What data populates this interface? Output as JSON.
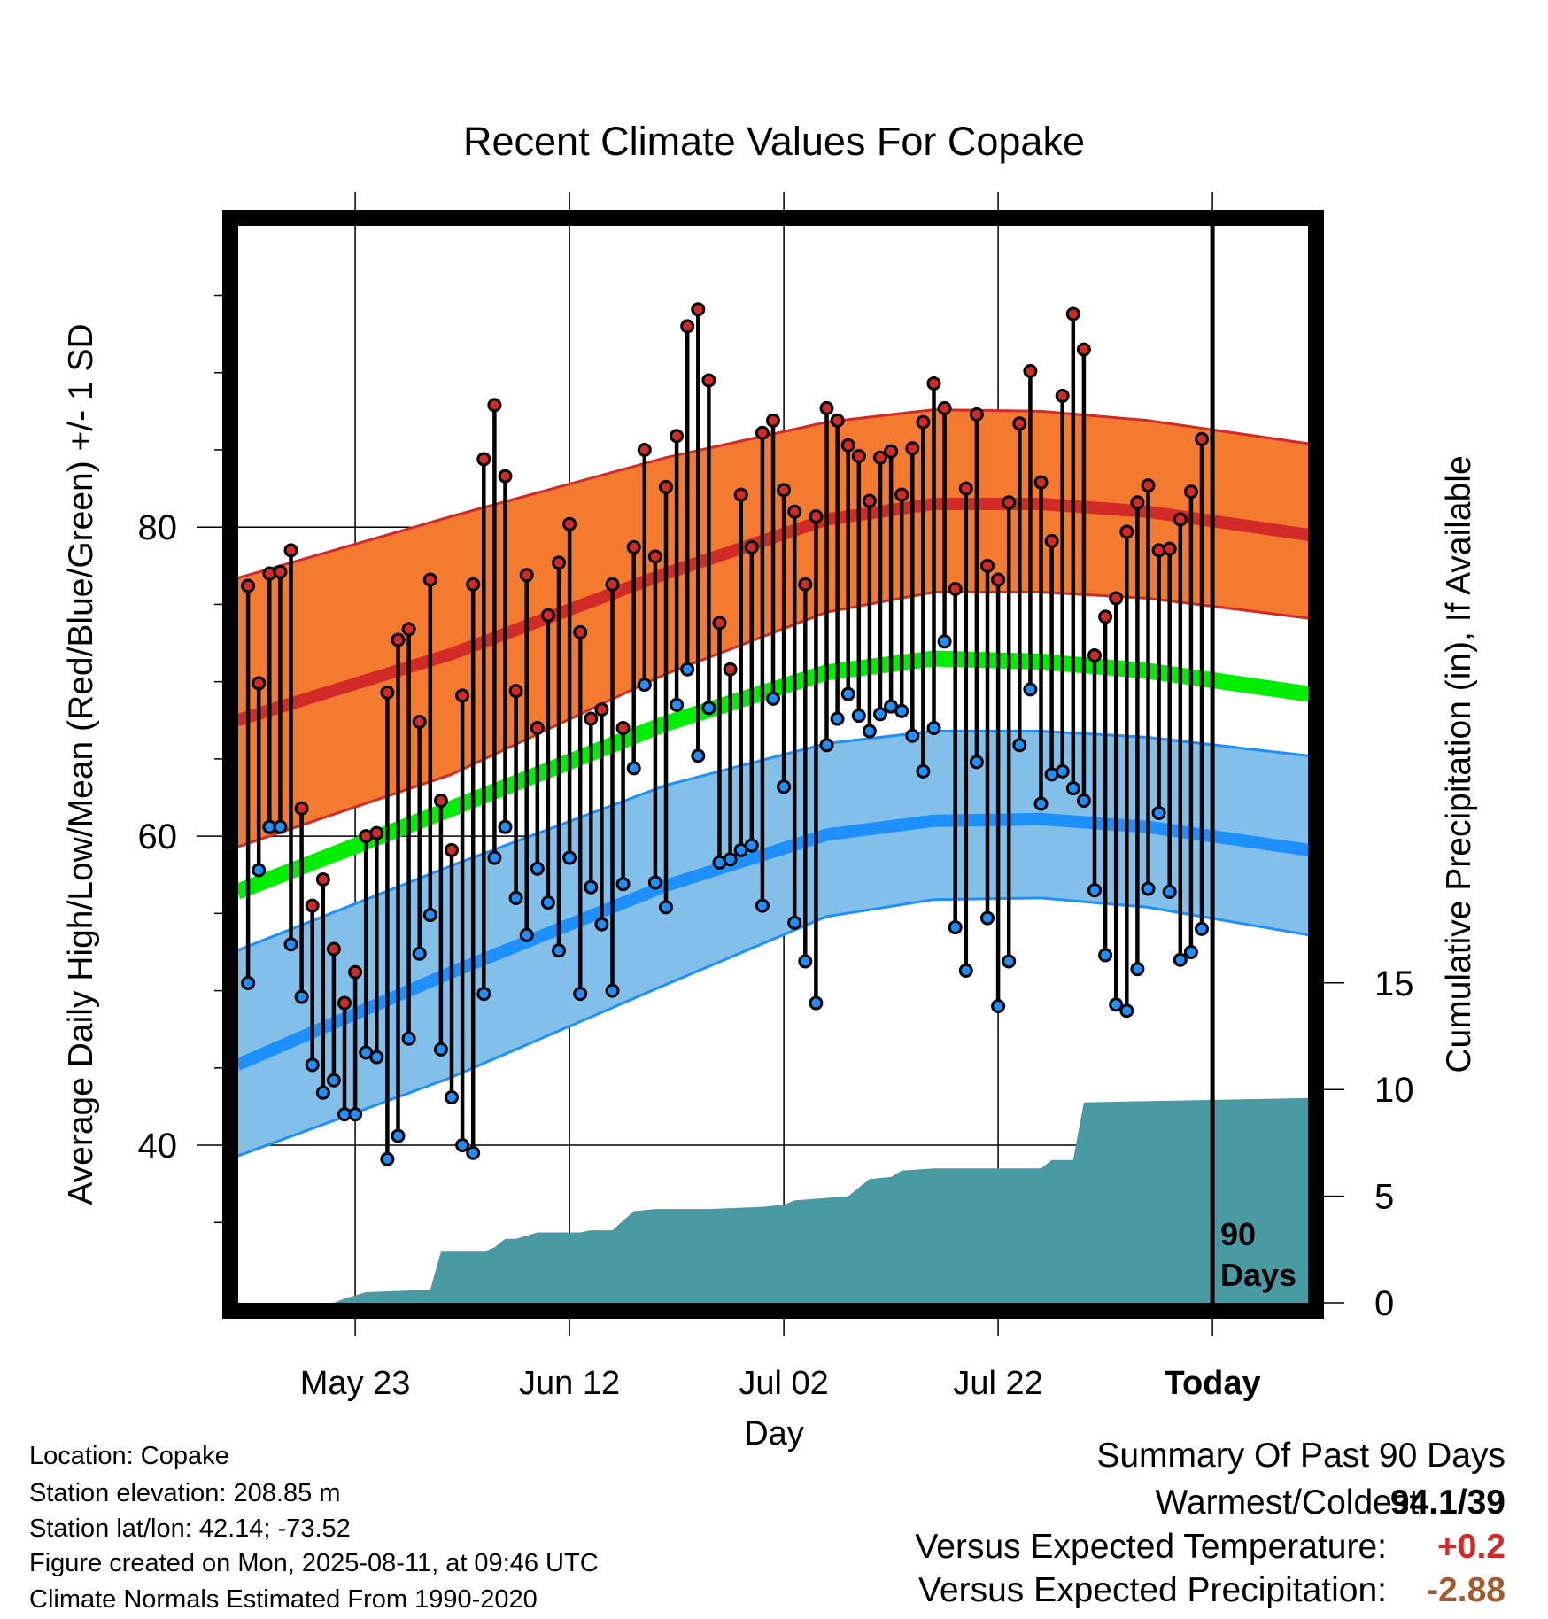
{
  "chart_data": {
    "type": "line",
    "title": "Recent Climate Values For Copake",
    "xlabel": "Day",
    "ylabel": "Average Daily High/Low/Mean (Red/Blue/Green) +/- 1 SD",
    "y2label": "Cumulative Precipitation (in), If Available",
    "x_ticks": [
      "May 23",
      "Jun 12",
      "Jul 02",
      "Jul 22",
      "Today"
    ],
    "y_ticks": [
      "40",
      "60",
      "80"
    ],
    "y2_ticks": [
      "0",
      "5",
      "10",
      "15"
    ],
    "ylim": [
      29.8,
      99.5
    ],
    "y2lim": [
      0,
      50.5
    ],
    "today_label": "90 Days",
    "today_date": "2025-08-11",
    "start_date": "2025-05-12",
    "end_date": "2025-08-20",
    "grid": true,
    "normal_high": [
      {
        "date": "2025-05-12",
        "v": 67.5
      },
      {
        "date": "2025-06-01",
        "v": 71.8
      },
      {
        "date": "2025-06-21",
        "v": 77.0
      },
      {
        "date": "2025-07-06",
        "v": 80.5
      },
      {
        "date": "2025-07-16",
        "v": 81.5
      },
      {
        "date": "2025-07-26",
        "v": 81.5
      },
      {
        "date": "2025-08-05",
        "v": 81.0
      },
      {
        "date": "2025-08-20",
        "v": 79.5
      }
    ],
    "normal_high_sd_upper": [
      {
        "date": "2025-05-12",
        "v": 76.7
      },
      {
        "date": "2025-06-01",
        "v": 80.7
      },
      {
        "date": "2025-06-21",
        "v": 84.5
      },
      {
        "date": "2025-07-06",
        "v": 86.8
      },
      {
        "date": "2025-07-16",
        "v": 87.6
      },
      {
        "date": "2025-07-26",
        "v": 87.5
      },
      {
        "date": "2025-08-05",
        "v": 86.9
      },
      {
        "date": "2025-08-20",
        "v": 85.4
      }
    ],
    "normal_high_sd_lower": [
      {
        "date": "2025-05-12",
        "v": 59.3
      },
      {
        "date": "2025-06-01",
        "v": 64.0
      },
      {
        "date": "2025-06-21",
        "v": 70.5
      },
      {
        "date": "2025-07-06",
        "v": 74.5
      },
      {
        "date": "2025-07-16",
        "v": 75.8
      },
      {
        "date": "2025-07-26",
        "v": 75.8
      },
      {
        "date": "2025-08-05",
        "v": 75.4
      },
      {
        "date": "2025-08-20",
        "v": 74.1
      }
    ],
    "normal_mean": [
      {
        "date": "2025-05-12",
        "v": 56.4
      },
      {
        "date": "2025-06-01",
        "v": 61.8
      },
      {
        "date": "2025-06-21",
        "v": 67.3
      },
      {
        "date": "2025-07-06",
        "v": 70.6
      },
      {
        "date": "2025-07-16",
        "v": 71.5
      },
      {
        "date": "2025-07-26",
        "v": 71.3
      },
      {
        "date": "2025-08-05",
        "v": 70.7
      },
      {
        "date": "2025-08-20",
        "v": 69.2
      }
    ],
    "normal_low": [
      {
        "date": "2025-05-12",
        "v": 45.2
      },
      {
        "date": "2025-06-01",
        "v": 51.2
      },
      {
        "date": "2025-06-21",
        "v": 56.8
      },
      {
        "date": "2025-07-06",
        "v": 60.1
      },
      {
        "date": "2025-07-16",
        "v": 61.0
      },
      {
        "date": "2025-07-26",
        "v": 61.1
      },
      {
        "date": "2025-08-05",
        "v": 60.6
      },
      {
        "date": "2025-08-20",
        "v": 59.1
      }
    ],
    "normal_low_sd_upper": [
      {
        "date": "2025-05-12",
        "v": 52.6
      },
      {
        "date": "2025-06-01",
        "v": 58.1
      },
      {
        "date": "2025-06-21",
        "v": 63.3
      },
      {
        "date": "2025-07-06",
        "v": 66.0
      },
      {
        "date": "2025-07-16",
        "v": 66.8
      },
      {
        "date": "2025-07-26",
        "v": 66.8
      },
      {
        "date": "2025-08-05",
        "v": 66.4
      },
      {
        "date": "2025-08-20",
        "v": 65.2
      }
    ],
    "normal_low_sd_lower": [
      {
        "date": "2025-05-12",
        "v": 39.3
      },
      {
        "date": "2025-06-01",
        "v": 44.4
      },
      {
        "date": "2025-06-21",
        "v": 50.4
      },
      {
        "date": "2025-07-06",
        "v": 54.8
      },
      {
        "date": "2025-07-16",
        "v": 55.9
      },
      {
        "date": "2025-07-26",
        "v": 56.0
      },
      {
        "date": "2025-08-05",
        "v": 55.4
      },
      {
        "date": "2025-08-20",
        "v": 53.6
      }
    ],
    "daily": [
      {
        "date": "2025-05-13",
        "high": 76.2,
        "low": 50.5
      },
      {
        "date": "2025-05-14",
        "high": 69.9,
        "low": 57.8
      },
      {
        "date": "2025-05-15",
        "high": 77.0,
        "low": 60.6
      },
      {
        "date": "2025-05-16",
        "high": 77.1,
        "low": 60.6
      },
      {
        "date": "2025-05-17",
        "high": 78.5,
        "low": 53.0
      },
      {
        "date": "2025-05-18",
        "high": 61.8,
        "low": 49.6
      },
      {
        "date": "2025-05-19",
        "high": 55.5,
        "low": 45.2
      },
      {
        "date": "2025-05-20",
        "high": 57.2,
        "low": 43.4
      },
      {
        "date": "2025-05-21",
        "high": 52.7,
        "low": 44.2
      },
      {
        "date": "2025-05-22",
        "high": 49.2,
        "low": 42.0
      },
      {
        "date": "2025-05-23",
        "high": 51.2,
        "low": 42.0
      },
      {
        "date": "2025-05-24",
        "high": 60.0,
        "low": 46.0
      },
      {
        "date": "2025-05-25",
        "high": 60.2,
        "low": 45.7
      },
      {
        "date": "2025-05-26",
        "high": 69.3,
        "low": 39.1
      },
      {
        "date": "2025-05-27",
        "high": 72.7,
        "low": 40.6
      },
      {
        "date": "2025-05-28",
        "high": 73.4,
        "low": 46.9
      },
      {
        "date": "2025-05-29",
        "high": 67.4,
        "low": 52.4
      },
      {
        "date": "2025-05-30",
        "high": 76.6,
        "low": 54.9
      },
      {
        "date": "2025-05-31",
        "high": 62.3,
        "low": 46.2
      },
      {
        "date": "2025-06-01",
        "high": 59.1,
        "low": 43.1
      },
      {
        "date": "2025-06-02",
        "high": 69.1,
        "low": 40.0
      },
      {
        "date": "2025-06-03",
        "high": 76.3,
        "low": 39.5
      },
      {
        "date": "2025-06-04",
        "high": 84.4,
        "low": 49.8
      },
      {
        "date": "2025-06-05",
        "high": 87.9,
        "low": 58.6
      },
      {
        "date": "2025-06-06",
        "high": 83.3,
        "low": 60.6
      },
      {
        "date": "2025-06-07",
        "high": 69.4,
        "low": 56.0
      },
      {
        "date": "2025-06-08",
        "high": 76.9,
        "low": 53.6
      },
      {
        "date": "2025-06-09",
        "high": 67.0,
        "low": 57.9
      },
      {
        "date": "2025-06-10",
        "high": 74.3,
        "low": 55.7
      },
      {
        "date": "2025-06-11",
        "high": 77.7,
        "low": 52.6
      },
      {
        "date": "2025-06-12",
        "high": 80.2,
        "low": 58.6
      },
      {
        "date": "2025-06-13",
        "high": 73.2,
        "low": 49.8
      },
      {
        "date": "2025-06-14",
        "high": 67.6,
        "low": 56.7
      },
      {
        "date": "2025-06-15",
        "high": 68.2,
        "low": 54.3
      },
      {
        "date": "2025-06-16",
        "high": 76.3,
        "low": 50.0
      },
      {
        "date": "2025-06-17",
        "high": 67.0,
        "low": 56.9
      },
      {
        "date": "2025-06-18",
        "high": 78.7,
        "low": 64.4
      },
      {
        "date": "2025-06-19",
        "high": 85.0,
        "low": 69.8
      },
      {
        "date": "2025-06-20",
        "high": 78.1,
        "low": 57.0
      },
      {
        "date": "2025-06-21",
        "high": 82.6,
        "low": 55.4
      },
      {
        "date": "2025-06-22",
        "high": 85.9,
        "low": 68.5
      },
      {
        "date": "2025-06-23",
        "high": 93.0,
        "low": 70.8
      },
      {
        "date": "2025-06-24",
        "high": 94.1,
        "low": 65.2
      },
      {
        "date": "2025-06-25",
        "high": 89.5,
        "low": 68.3
      },
      {
        "date": "2025-06-26",
        "high": 73.8,
        "low": 58.3
      },
      {
        "date": "2025-06-27",
        "high": 70.8,
        "low": 58.5
      },
      {
        "date": "2025-06-28",
        "high": 82.1,
        "low": 59.1
      },
      {
        "date": "2025-06-29",
        "high": 78.7,
        "low": 59.4
      },
      {
        "date": "2025-06-30",
        "high": 86.1,
        "low": 55.5
      },
      {
        "date": "2025-07-01",
        "high": 86.9,
        "low": 68.9
      },
      {
        "date": "2025-07-02",
        "high": 82.4,
        "low": 63.2
      },
      {
        "date": "2025-07-03",
        "high": 81.0,
        "low": 54.4
      },
      {
        "date": "2025-07-04",
        "high": 76.3,
        "low": 51.9
      },
      {
        "date": "2025-07-05",
        "high": 80.7,
        "low": 49.2
      },
      {
        "date": "2025-07-06",
        "high": 87.7,
        "low": 65.9
      },
      {
        "date": "2025-07-07",
        "high": 86.9,
        "low": 67.6
      },
      {
        "date": "2025-07-08",
        "high": 85.3,
        "low": 69.2
      },
      {
        "date": "2025-07-09",
        "high": 84.6,
        "low": 67.8
      },
      {
        "date": "2025-07-10",
        "high": 81.7,
        "low": 66.8
      },
      {
        "date": "2025-07-11",
        "high": 84.5,
        "low": 67.9
      },
      {
        "date": "2025-07-12",
        "high": 84.9,
        "low": 68.4
      },
      {
        "date": "2025-07-13",
        "high": 82.1,
        "low": 68.1
      },
      {
        "date": "2025-07-14",
        "high": 85.1,
        "low": 66.5
      },
      {
        "date": "2025-07-15",
        "high": 86.8,
        "low": 64.2
      },
      {
        "date": "2025-07-16",
        "high": 89.3,
        "low": 67.0
      },
      {
        "date": "2025-07-17",
        "high": 87.7,
        "low": 72.6
      },
      {
        "date": "2025-07-18",
        "high": 76.0,
        "low": 54.1
      },
      {
        "date": "2025-07-19",
        "high": 82.5,
        "low": 51.3
      },
      {
        "date": "2025-07-20",
        "high": 87.3,
        "low": 64.8
      },
      {
        "date": "2025-07-21",
        "high": 77.5,
        "low": 54.7
      },
      {
        "date": "2025-07-22",
        "high": 76.6,
        "low": 49.0
      },
      {
        "date": "2025-07-23",
        "high": 81.6,
        "low": 51.9
      },
      {
        "date": "2025-07-24",
        "high": 86.7,
        "low": 65.9
      },
      {
        "date": "2025-07-25",
        "high": 90.1,
        "low": 69.5
      },
      {
        "date": "2025-07-26",
        "high": 82.9,
        "low": 62.1
      },
      {
        "date": "2025-07-27",
        "high": 79.1,
        "low": 64.0
      },
      {
        "date": "2025-07-28",
        "high": 88.5,
        "low": 64.2
      },
      {
        "date": "2025-07-29",
        "high": 93.8,
        "low": 63.1
      },
      {
        "date": "2025-07-30",
        "high": 91.5,
        "low": 62.3
      },
      {
        "date": "2025-07-31",
        "high": 71.7,
        "low": 56.5
      },
      {
        "date": "2025-08-01",
        "high": 74.2,
        "low": 52.3
      },
      {
        "date": "2025-08-02",
        "high": 75.4,
        "low": 49.1
      },
      {
        "date": "2025-08-03",
        "high": 79.7,
        "low": 48.7
      },
      {
        "date": "2025-08-04",
        "high": 81.6,
        "low": 51.4
      },
      {
        "date": "2025-08-05",
        "high": 82.7,
        "low": 56.6
      },
      {
        "date": "2025-08-06",
        "high": 78.5,
        "low": 61.5
      },
      {
        "date": "2025-08-07",
        "high": 78.6,
        "low": 56.4
      },
      {
        "date": "2025-08-08",
        "high": 80.5,
        "low": 52.0
      },
      {
        "date": "2025-08-09",
        "high": 82.3,
        "low": 52.5
      },
      {
        "date": "2025-08-10",
        "high": 85.7,
        "low": 54.0
      }
    ],
    "precip_cumulative": [
      {
        "date": "2025-05-12",
        "v": 0
      },
      {
        "date": "2025-05-21",
        "v": 0
      },
      {
        "date": "2025-05-22",
        "v": 0.2
      },
      {
        "date": "2025-05-24",
        "v": 0.5
      },
      {
        "date": "2025-05-29",
        "v": 0.6
      },
      {
        "date": "2025-05-30",
        "v": 0.6
      },
      {
        "date": "2025-05-31",
        "v": 2.4
      },
      {
        "date": "2025-06-04",
        "v": 2.4
      },
      {
        "date": "2025-06-05",
        "v": 2.6
      },
      {
        "date": "2025-06-06",
        "v": 3.0
      },
      {
        "date": "2025-06-07",
        "v": 3.0
      },
      {
        "date": "2025-06-09",
        "v": 3.3
      },
      {
        "date": "2025-06-13",
        "v": 3.3
      },
      {
        "date": "2025-06-14",
        "v": 3.4
      },
      {
        "date": "2025-06-16",
        "v": 3.4
      },
      {
        "date": "2025-06-18",
        "v": 4.3
      },
      {
        "date": "2025-06-20",
        "v": 4.4
      },
      {
        "date": "2025-06-25",
        "v": 4.4
      },
      {
        "date": "2025-06-30",
        "v": 4.5
      },
      {
        "date": "2025-07-02",
        "v": 4.6
      },
      {
        "date": "2025-07-03",
        "v": 4.8
      },
      {
        "date": "2025-07-08",
        "v": 5.0
      },
      {
        "date": "2025-07-10",
        "v": 5.8
      },
      {
        "date": "2025-07-12",
        "v": 5.9
      },
      {
        "date": "2025-07-13",
        "v": 6.2
      },
      {
        "date": "2025-07-16",
        "v": 6.3
      },
      {
        "date": "2025-07-26",
        "v": 6.3
      },
      {
        "date": "2025-07-27",
        "v": 6.7
      },
      {
        "date": "2025-07-29",
        "v": 6.7
      },
      {
        "date": "2025-07-30",
        "v": 9.4
      },
      {
        "date": "2025-08-20",
        "v": 9.6
      }
    ]
  },
  "info": {
    "location": "Location: Copake",
    "elevation": "Station elevation: 208.85 m",
    "latlon": "Station lat/lon: 42.14; -73.52",
    "created": "Figure created on Mon, 2025-08-11, at 09:46 UTC",
    "normals": "Climate Normals Estimated From 1990-2020"
  },
  "summary": {
    "title": "Summary Of Past 90 Days",
    "warmest_label": "Warmest/Coldest:",
    "warmest_value": "94.1/39",
    "temp_label": "Versus Expected Temperature:",
    "temp_value": "+0.2",
    "precip_label": "Versus Expected Precipitation:",
    "precip_value": "-2.88"
  },
  "colors": {
    "high_band": "#f47a2f",
    "high_line": "#d22b27",
    "mean_line": "#00ee00",
    "low_band": "#82c0e9",
    "low_line": "#1e8fff",
    "precip": "#4a9aa3",
    "temp_positive": "#d22b27",
    "precip_negative": "#a25a30"
  }
}
